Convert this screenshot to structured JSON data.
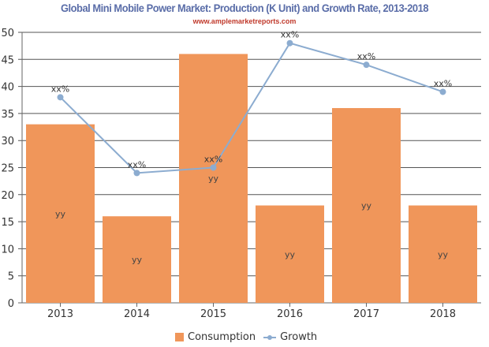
{
  "chart_data": {
    "type": "bar",
    "title": "Global Mini Mobile Power Market: Production (K Unit) and Growth Rate, 2013-2018",
    "subtitle": "www.amplemarketreports.com",
    "categories": [
      "2013",
      "2014",
      "2015",
      "2016",
      "2017",
      "2018"
    ],
    "ylim": [
      0,
      50
    ],
    "yticks": [
      0,
      5,
      10,
      15,
      20,
      25,
      30,
      35,
      40,
      45,
      50
    ],
    "grid": true,
    "legend_placement": "bottom",
    "series": [
      {
        "name": "Consumption",
        "type": "bar",
        "color": "#f0965a",
        "values": [
          33,
          16,
          46,
          18,
          36,
          18
        ],
        "label": "yy"
      },
      {
        "name": "Growth",
        "type": "line",
        "color": "#8cacd0",
        "values": [
          38,
          24,
          25,
          48,
          44,
          39
        ],
        "label": "xx%"
      }
    ]
  }
}
